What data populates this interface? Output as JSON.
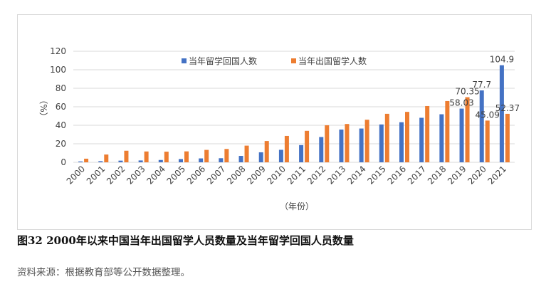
{
  "caption": "图32 2000年以来中国当年出国留学人员数量及当年留学回国人员数量",
  "source": "资料来源：根据教育部等公开数据整理。",
  "colors": {
    "series1": "#4472C4",
    "series2": "#ED7D31",
    "grid": "#d9d9d9",
    "text": "#404040"
  },
  "chart_data": {
    "type": "bar",
    "title": "",
    "xlabel": "（年份）",
    "ylabel": "（%）",
    "ylim": [
      0,
      120
    ],
    "yticks": [
      0,
      20,
      40,
      60,
      80,
      100,
      120
    ],
    "grid": true,
    "legend": "top-right",
    "categories": [
      "2000",
      "2001",
      "2002",
      "2003",
      "2004",
      "2005",
      "2006",
      "2007",
      "2008",
      "2009",
      "2010",
      "2011",
      "2012",
      "2013",
      "2014",
      "2015",
      "2016",
      "2017",
      "2018",
      "2019",
      "2020",
      "2021"
    ],
    "series": [
      {
        "name": "当年留学回国人数",
        "values": [
          0.9,
          1.2,
          1.8,
          2.0,
          2.5,
          3.5,
          4.2,
          4.4,
          6.9,
          10.8,
          13.5,
          18.6,
          27.3,
          35.4,
          36.5,
          40.9,
          43.3,
          48.1,
          51.9,
          58.03,
          77.7,
          104.9
        ],
        "labels": [
          "",
          "",
          "",
          "",
          "",
          "",
          "",
          "",
          "",
          "",
          "",
          "",
          "",
          "",
          "",
          "",
          "",
          "",
          "",
          "58.03",
          "77.7",
          "104.9"
        ]
      },
      {
        "name": "当年出国留学人数",
        "values": [
          3.9,
          8.4,
          12.5,
          11.7,
          11.5,
          11.8,
          13.4,
          14.4,
          18.0,
          23.0,
          28.5,
          34.0,
          40.0,
          41.4,
          46.0,
          52.4,
          54.5,
          60.8,
          66.2,
          70.35,
          45.09,
          52.37
        ],
        "labels": [
          "",
          "",
          "",
          "",
          "",
          "",
          "",
          "",
          "",
          "",
          "",
          "",
          "",
          "",
          "",
          "",
          "",
          "",
          "",
          "70.35",
          "45.09",
          "52.37"
        ]
      }
    ]
  }
}
